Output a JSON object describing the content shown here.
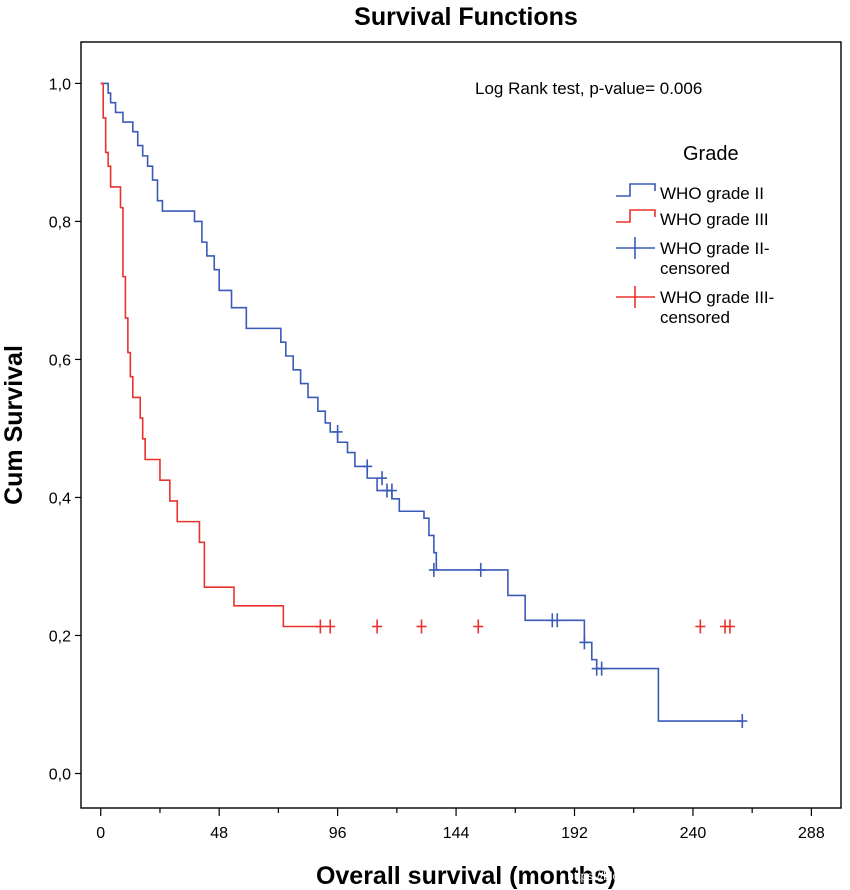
{
  "chart_data": {
    "type": "line",
    "title": "Survival Functions",
    "xlabel": "Overall survival (months)",
    "ylabel": "Cum Survival",
    "xlim": [
      -8,
      300
    ],
    "ylim": [
      -0.05,
      1.06
    ],
    "xticks": [
      0,
      48,
      96,
      144,
      192,
      240,
      288
    ],
    "xtick_labels": [
      "0",
      "48",
      "96",
      "144",
      "192",
      "240",
      "288"
    ],
    "yticks": [
      0.0,
      0.2,
      0.4,
      0.6,
      0.8,
      1.0
    ],
    "ytick_labels": [
      "0,0",
      "0,2",
      "0,4",
      "0,6",
      "0,8",
      "1,0"
    ],
    "annotation": "Log Rank test, p-value= 0.006",
    "legend_title": "Grade",
    "legend_position": "right",
    "legend": [
      {
        "label_lines": [
          "WHO grade II"
        ],
        "color": "#3a5ab8",
        "style": "line"
      },
      {
        "label_lines": [
          "WHO grade III"
        ],
        "color": "#e8322e",
        "style": "line"
      },
      {
        "label_lines": [
          "WHO grade II-",
          "censored"
        ],
        "color": "#3a5ab8",
        "style": "censor"
      },
      {
        "label_lines": [
          "WHO grade III-",
          "censored"
        ],
        "color": "#e8322e",
        "style": "censor"
      }
    ],
    "watermark": "https://blog.csdn.net/zhongkeyuanchongqing",
    "series": [
      {
        "name": "WHO grade II",
        "color": "#3a5ab8",
        "x": [
          0,
          1,
          3,
          4,
          6,
          9,
          13,
          15,
          17,
          19,
          21,
          23,
          25,
          38,
          41,
          43,
          46,
          48,
          53,
          59,
          66,
          73,
          75,
          78,
          81,
          84,
          88,
          91,
          93,
          96,
          100,
          103,
          108,
          112,
          118,
          121,
          131,
          133,
          135,
          136,
          154,
          165,
          172,
          177,
          186,
          196,
          199,
          201,
          223,
          226,
          260
        ],
        "y": [
          1.0,
          1.0,
          0.986,
          0.972,
          0.958,
          0.944,
          0.93,
          0.91,
          0.895,
          0.88,
          0.86,
          0.83,
          0.815,
          0.8,
          0.77,
          0.75,
          0.73,
          0.7,
          0.675,
          0.645,
          0.645,
          0.625,
          0.605,
          0.585,
          0.565,
          0.545,
          0.525,
          0.508,
          0.495,
          0.48,
          0.465,
          0.445,
          0.428,
          0.41,
          0.398,
          0.38,
          0.37,
          0.345,
          0.32,
          0.295,
          0.295,
          0.258,
          0.222,
          0.222,
          0.222,
          0.19,
          0.165,
          0.152,
          0.152,
          0.076,
          0.076
        ],
        "censored": [
          {
            "x": 96,
            "y": 0.495
          },
          {
            "x": 108,
            "y": 0.445
          },
          {
            "x": 114,
            "y": 0.428
          },
          {
            "x": 116,
            "y": 0.41
          },
          {
            "x": 118,
            "y": 0.41
          },
          {
            "x": 135,
            "y": 0.295
          },
          {
            "x": 154,
            "y": 0.295
          },
          {
            "x": 183,
            "y": 0.222
          },
          {
            "x": 185,
            "y": 0.222
          },
          {
            "x": 196,
            "y": 0.19
          },
          {
            "x": 201,
            "y": 0.152
          },
          {
            "x": 203,
            "y": 0.152
          },
          {
            "x": 260,
            "y": 0.076
          }
        ]
      },
      {
        "name": "WHO grade III",
        "color": "#e8322e",
        "x": [
          0,
          1,
          2,
          3,
          4,
          6,
          8,
          9,
          10,
          11,
          12,
          13,
          14,
          16,
          17,
          18,
          20,
          24,
          28,
          31,
          40,
          42,
          54,
          74,
          88
        ],
        "y": [
          1.0,
          0.95,
          0.9,
          0.88,
          0.85,
          0.85,
          0.82,
          0.72,
          0.66,
          0.61,
          0.575,
          0.545,
          0.545,
          0.515,
          0.485,
          0.455,
          0.455,
          0.425,
          0.395,
          0.365,
          0.335,
          0.27,
          0.243,
          0.213,
          0.213
        ],
        "censored": [
          {
            "x": 89,
            "y": 0.213
          },
          {
            "x": 93,
            "y": 0.213
          },
          {
            "x": 112,
            "y": 0.213
          },
          {
            "x": 130,
            "y": 0.213
          },
          {
            "x": 153,
            "y": 0.213
          },
          {
            "x": 243,
            "y": 0.213
          },
          {
            "x": 253,
            "y": 0.213
          },
          {
            "x": 255,
            "y": 0.213
          }
        ]
      }
    ]
  }
}
